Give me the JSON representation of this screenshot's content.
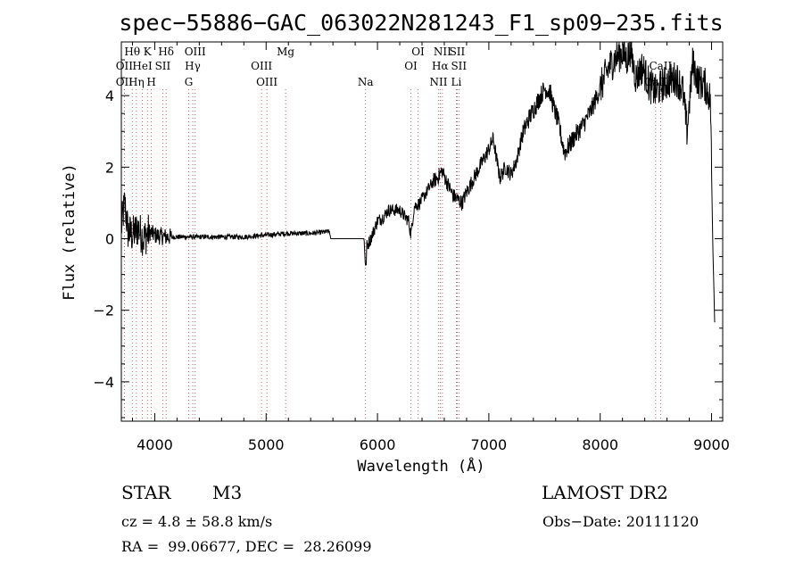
{
  "chart_data": {
    "type": "line",
    "title": "spec−55886−GAC_063022N281243_F1_sp09−235.fits",
    "xlabel": "Wavelength (Å)",
    "ylabel": "Flux (relative)",
    "xlim": [
      3700,
      9100
    ],
    "ylim": [
      -5.1,
      5.5
    ],
    "xticks": [
      "4000",
      "5000",
      "6000",
      "7000",
      "8000",
      "9000"
    ],
    "yticks": [
      "4",
      "2",
      "0",
      "−2",
      "−4"
    ],
    "spectral_lines": [
      {
        "name": "OII",
        "wavelength": 3727,
        "row": 2
      },
      {
        "name": "Hθ",
        "wavelength": 3798,
        "row": 0
      },
      {
        "name": "OII",
        "wavelength": 3727,
        "row": 1
      },
      {
        "name": "Hη",
        "wavelength": 3835,
        "row": 2
      },
      {
        "name": "K",
        "wavelength": 3934,
        "row": 0
      },
      {
        "name": "HeI",
        "wavelength": 3889,
        "row": 1
      },
      {
        "name": "H",
        "wavelength": 3969,
        "row": 2
      },
      {
        "name": "SII",
        "wavelength": 4072,
        "row": 1
      },
      {
        "name": "Hδ",
        "wavelength": 4102,
        "row": 0
      },
      {
        "name": "OIII",
        "wavelength": 4363,
        "row": 0
      },
      {
        "name": "Hγ",
        "wavelength": 4341,
        "row": 1
      },
      {
        "name": "G",
        "wavelength": 4305,
        "row": 2
      },
      {
        "name": "OIII",
        "wavelength": 4959,
        "row": 1
      },
      {
        "name": "OIII",
        "wavelength": 5007,
        "row": 2
      },
      {
        "name": "Mg",
        "wavelength": 5175,
        "row": 0
      },
      {
        "name": "Na",
        "wavelength": 5893,
        "row": 2
      },
      {
        "name": "OI",
        "wavelength": 6300,
        "row": 1
      },
      {
        "name": "OI",
        "wavelength": 6364,
        "row": 0
      },
      {
        "name": "NII",
        "wavelength": 6548,
        "row": 2
      },
      {
        "name": "NII",
        "wavelength": 6583,
        "row": 0
      },
      {
        "name": "Hα",
        "wavelength": 6563,
        "row": 1
      },
      {
        "name": "SII",
        "wavelength": 6716,
        "row": 0
      },
      {
        "name": "SII",
        "wavelength": 6731,
        "row": 1
      },
      {
        "name": "Li",
        "wavelength": 6708,
        "row": 2
      },
      {
        "name": "CaII",
        "wavelength": 8498,
        "row": 2
      },
      {
        "name": "CaII",
        "wavelength": 8542,
        "row": 1
      }
    ],
    "series": [
      {
        "flux_anchors": [
          [
            3700,
            0.3
          ],
          [
            3730,
            1.0
          ],
          [
            3760,
            0.2
          ],
          [
            3800,
            0.1
          ],
          [
            3850,
            0.3
          ],
          [
            3900,
            0.0
          ],
          [
            3950,
            0.2
          ],
          [
            4000,
            0.1
          ],
          [
            4100,
            0.05
          ],
          [
            4200,
            0.05
          ],
          [
            4400,
            0.05
          ],
          [
            4600,
            0.05
          ],
          [
            4800,
            0.05
          ],
          [
            5000,
            0.1
          ],
          [
            5200,
            0.15
          ],
          [
            5400,
            0.15
          ],
          [
            5570,
            0.2
          ],
          [
            5580,
            0.0
          ],
          [
            5880,
            0.0
          ],
          [
            5895,
            -0.9
          ],
          [
            5905,
            -0.2
          ],
          [
            5940,
            0.0
          ],
          [
            6000,
            0.5
          ],
          [
            6050,
            0.6
          ],
          [
            6100,
            0.8
          ],
          [
            6150,
            0.8
          ],
          [
            6200,
            0.8
          ],
          [
            6250,
            0.6
          ],
          [
            6280,
            0.5
          ],
          [
            6300,
            0.1
          ],
          [
            6330,
            0.9
          ],
          [
            6380,
            1.0
          ],
          [
            6440,
            1.3
          ],
          [
            6500,
            1.6
          ],
          [
            6540,
            1.7
          ],
          [
            6580,
            1.9
          ],
          [
            6620,
            1.6
          ],
          [
            6680,
            1.2
          ],
          [
            6720,
            1.1
          ],
          [
            6760,
            1.0
          ],
          [
            6800,
            1.3
          ],
          [
            6850,
            1.6
          ],
          [
            6900,
            1.9
          ],
          [
            6950,
            2.2
          ],
          [
            7000,
            2.5
          ],
          [
            7040,
            2.8
          ],
          [
            7070,
            2.2
          ],
          [
            7100,
            1.7
          ],
          [
            7150,
            2.0
          ],
          [
            7200,
            1.8
          ],
          [
            7250,
            2.2
          ],
          [
            7300,
            2.9
          ],
          [
            7350,
            3.3
          ],
          [
            7400,
            3.6
          ],
          [
            7450,
            3.9
          ],
          [
            7500,
            4.2
          ],
          [
            7550,
            4.1
          ],
          [
            7580,
            3.7
          ],
          [
            7620,
            3.3
          ],
          [
            7680,
            2.4
          ],
          [
            7720,
            2.6
          ],
          [
            7780,
            2.9
          ],
          [
            7850,
            3.2
          ],
          [
            7920,
            3.6
          ],
          [
            8000,
            4.2
          ],
          [
            8080,
            4.8
          ],
          [
            8150,
            5.1
          ],
          [
            8200,
            5.2
          ],
          [
            8240,
            5.0
          ],
          [
            8270,
            5.3
          ],
          [
            8320,
            4.5
          ],
          [
            8380,
            4.8
          ],
          [
            8440,
            4.3
          ],
          [
            8500,
            4.1
          ],
          [
            8560,
            4.3
          ],
          [
            8620,
            4.4
          ],
          [
            8680,
            4.5
          ],
          [
            8740,
            4.2
          ],
          [
            8780,
            3.0
          ],
          [
            8830,
            4.9
          ],
          [
            8880,
            4.4
          ],
          [
            8940,
            4.3
          ],
          [
            8990,
            3.9
          ],
          [
            9010,
            0.0
          ],
          [
            9030,
            -2.6
          ]
        ]
      }
    ]
  },
  "info": {
    "object_type": "STAR",
    "subclass": "M3",
    "survey": "LAMOST DR2",
    "cz": "cz = 4.8 ± 58.8 km/s",
    "obs_date": "Obs−Date: 20111120",
    "radec": "RA =  99.06677, DEC =  28.26099"
  }
}
